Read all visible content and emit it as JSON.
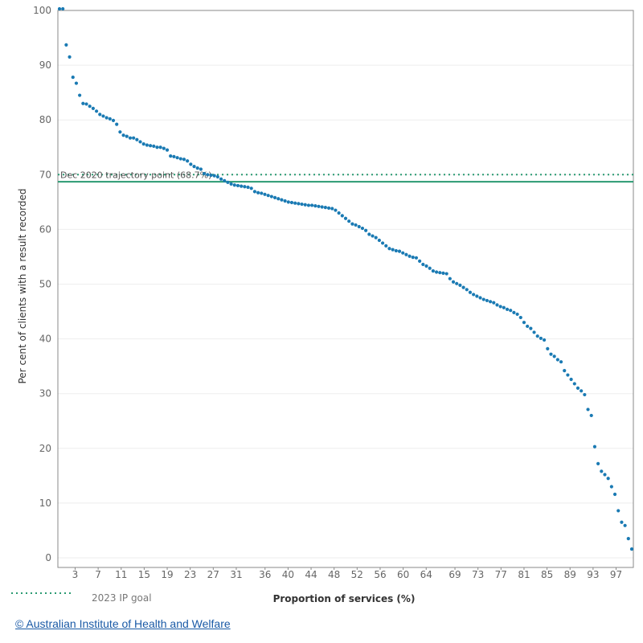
{
  "chart_data": {
    "type": "scatter",
    "xlabel": "Proportion of services (%)",
    "ylabel": "Per cent of clients with a result recorded",
    "ylim": [
      0,
      100
    ],
    "yticks": [
      0,
      10,
      20,
      30,
      40,
      50,
      60,
      70,
      80,
      90,
      100
    ],
    "xticks": [
      3,
      7,
      11,
      15,
      19,
      23,
      27,
      31,
      36,
      40,
      44,
      48,
      52,
      56,
      60,
      64,
      69,
      73,
      77,
      81,
      85,
      89,
      93,
      97
    ],
    "xlim": [
      0,
      100
    ],
    "grid": "horizontal",
    "colors": {
      "points": "#1a7ab3",
      "trajectory_line": "#2a9a72",
      "goal_line": "#2a9a72",
      "axis": "#888888",
      "grid": "#eeeeee"
    },
    "reference_lines": [
      {
        "label": "Dec 2020 trajectory point (68.7%)",
        "y": 68.7,
        "style": "solid"
      },
      {
        "label": "2023 IP goal",
        "y": 70,
        "style": "dotted"
      }
    ],
    "y": [
      101,
      101,
      93.7,
      91.5,
      87.8,
      86.7,
      84.5,
      83.0,
      82.9,
      82.5,
      82.1,
      81.6,
      81.0,
      80.7,
      80.4,
      80.2,
      79.9,
      79.2,
      77.8,
      77.2,
      77.0,
      76.7,
      76.7,
      76.4,
      76.0,
      75.6,
      75.4,
      75.3,
      75.2,
      75.0,
      75.0,
      74.8,
      74.5,
      73.4,
      73.3,
      73.1,
      72.9,
      72.8,
      72.5,
      71.9,
      71.5,
      71.2,
      71.0,
      70.2,
      70.0,
      69.9,
      69.8,
      69.6,
      69.2,
      68.9,
      68.6,
      68.3,
      68.1,
      68.0,
      67.9,
      67.8,
      67.7,
      67.5,
      66.9,
      66.7,
      66.6,
      66.4,
      66.2,
      66.0,
      65.8,
      65.6,
      65.4,
      65.2,
      65.0,
      64.9,
      64.8,
      64.7,
      64.6,
      64.5,
      64.4,
      64.4,
      64.3,
      64.2,
      64.1,
      64.0,
      63.9,
      63.8,
      63.5,
      63.0,
      62.5,
      62.0,
      61.5,
      61.0,
      60.8,
      60.5,
      60.2,
      59.8,
      59.1,
      58.8,
      58.5,
      58.0,
      57.5,
      57.0,
      56.5,
      56.3,
      56.1,
      56.0,
      55.7,
      55.4,
      55.1,
      54.9,
      54.8,
      54.2,
      53.6,
      53.3,
      52.9,
      52.4,
      52.2,
      52.1,
      52.0,
      51.9,
      51.0,
      50.4,
      50.1,
      49.8,
      49.4,
      49.0,
      48.5,
      48.1,
      47.8,
      47.5,
      47.2,
      47.0,
      46.8,
      46.6,
      46.2,
      45.9,
      45.7,
      45.4,
      45.2,
      44.8,
      44.5,
      43.9,
      43.0,
      42.3,
      41.9,
      41.2,
      40.5,
      40.1,
      39.8,
      38.2,
      37.2,
      36.8,
      36.2,
      35.8,
      34.2,
      33.4,
      32.6,
      31.8,
      31.0,
      30.5,
      29.8,
      27.1,
      26.0,
      20.3,
      17.2,
      15.8,
      15.2,
      14.5,
      13.0,
      11.6,
      8.6,
      6.5,
      5.9,
      3.5,
      1.6
    ]
  },
  "credit": {
    "text": "© Australian Institute of Health and Welfare"
  }
}
